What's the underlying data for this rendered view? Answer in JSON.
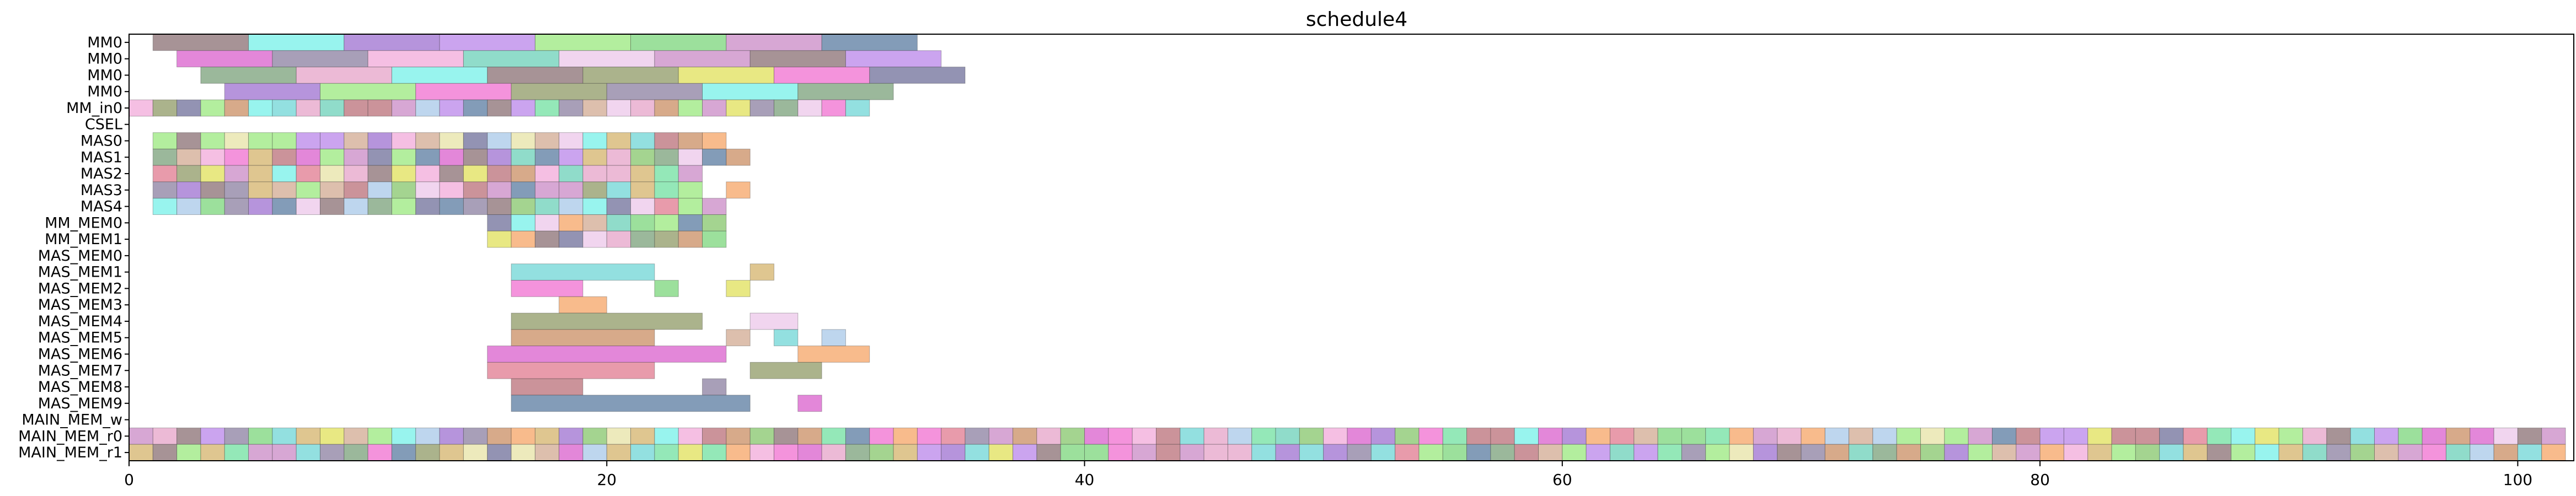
{
  "chart_data": {
    "type": "gantt",
    "title": "schedule4",
    "xlabel": "",
    "ylabel": "",
    "xlim": [
      0,
      102.3
    ],
    "xticks": [
      0,
      20,
      40,
      60,
      80,
      100
    ],
    "rows": [
      "MM0",
      "MM0",
      "MM0",
      "MM0",
      "MM_in0",
      "CSEL",
      "MAS0",
      "MAS1",
      "MAS2",
      "MAS3",
      "MAS4",
      "MM_MEM0",
      "MM_MEM1",
      "MAS_MEM0",
      "MAS_MEM1",
      "MAS_MEM2",
      "MAS_MEM3",
      "MAS_MEM4",
      "MAS_MEM5",
      "MAS_MEM6",
      "MAS_MEM7",
      "MAS_MEM8",
      "MAS_MEM9",
      "MAIN_MEM_w",
      "MAIN_MEM_r0",
      "MAIN_MEM_r1"
    ],
    "palette": [
      "#d4b36b",
      "#e0e05a",
      "#c98ac6",
      "#9e70d0",
      "#e6a3c8",
      "#8f9a66",
      "#c98d63",
      "#b985ea",
      "#f2a9d9",
      "#6fd6d6",
      "#b96f78",
      "#f5a465",
      "#8b7fa0",
      "#9ae87d",
      "#8a6f73",
      "#7bd67b",
      "#76f0e8",
      "#d95fcc",
      "#70e0a0",
      "#ecc7ea",
      "#7aa079",
      "#86c66b",
      "#d1aa91",
      "#6bd0b8",
      "#e07a8f",
      "#e7e3a6",
      "#5a7ba0",
      "#a8c8e8",
      "#f06fd0",
      "#6f6f9a"
    ],
    "gridlines": false,
    "legend": "none",
    "tasks": {
      "MM0": [
        [
          1,
          5
        ],
        [
          5,
          9
        ],
        [
          9,
          13
        ],
        [
          13,
          17
        ],
        [
          17,
          21
        ],
        [
          21,
          25
        ],
        [
          25,
          29
        ],
        [
          29,
          33
        ]
      ],
      "MM0_b": [
        [
          2,
          6
        ],
        [
          6,
          10
        ],
        [
          10,
          14
        ],
        [
          14,
          18
        ],
        [
          18,
          22
        ],
        [
          22,
          26
        ],
        [
          26,
          30
        ],
        [
          30,
          34
        ]
      ],
      "MM0_c": [
        [
          3,
          7
        ],
        [
          7,
          11
        ],
        [
          11,
          15
        ],
        [
          15,
          19
        ],
        [
          19,
          23
        ],
        [
          23,
          27
        ],
        [
          27,
          31
        ],
        [
          31,
          35
        ]
      ],
      "MM0_d": [
        [
          4,
          8
        ],
        [
          8,
          12
        ],
        [
          12,
          16
        ],
        [
          16,
          20
        ],
        [
          20,
          24
        ],
        [
          24,
          28
        ],
        [
          28,
          32
        ]
      ],
      "MM_in0": "0-31 (1/unit)",
      "MAS0": "1-25 (1/unit)",
      "MAS1": "1-26 (1/unit)",
      "MAS2": "1-24 (1/unit)",
      "MAS3": "1-24 (1/unit), 25-26",
      "MAS4": "1-25 (1/unit)",
      "MM_MEM0": "15-25 (1/unit)",
      "MM_MEM1": "15-25 (1/unit)",
      "MAS_MEM1": "16-22, 26-27",
      "MAS_MEM2": "16-19, 22-23, 25-26",
      "MAS_MEM3": "18-20",
      "MAS_MEM4": "16-24, 26-28",
      "MAS_MEM5": "16-22, 25-26, 27-28, 29-30",
      "MAS_MEM6": "15-25, 28-31",
      "MAS_MEM7": "15-22, 26-29",
      "MAS_MEM8": "16-19, 24-25",
      "MAS_MEM9": "16-26, 28-29",
      "MAIN_MEM_r0": "0-102 (1/unit)",
      "MAIN_MEM_r1": "0-102 (1/unit)"
    }
  }
}
